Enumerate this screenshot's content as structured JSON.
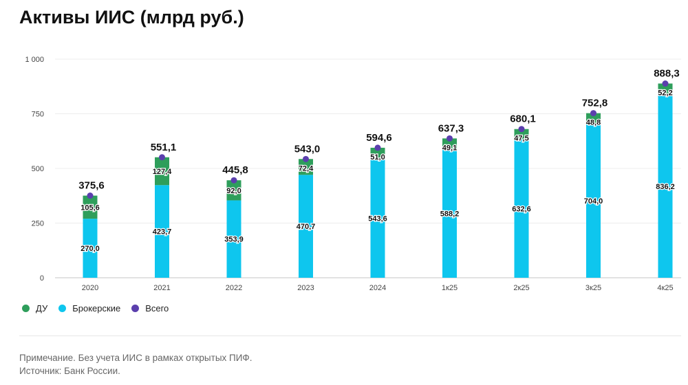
{
  "chart_data": {
    "type": "bar",
    "stacked": true,
    "title": "Активы ИИС (млрд руб.)",
    "categories": [
      "2020",
      "2021",
      "2022",
      "2023",
      "2024",
      "1к25",
      "2к25",
      "3к25",
      "4к25"
    ],
    "series": [
      {
        "name": "Брокерские",
        "color": "#0ec6ee",
        "values": [
          270.0,
          423.7,
          353.9,
          470.7,
          543.6,
          588.2,
          632.6,
          704.0,
          836.2
        ],
        "labels": [
          "270,0",
          "423,7",
          "353,9",
          "470,7",
          "543,6",
          "588,2",
          "632,6",
          "704,0",
          "836,2"
        ]
      },
      {
        "name": "ДУ",
        "color": "#2e9e5b",
        "values": [
          105.6,
          127.4,
          92.0,
          72.4,
          51.0,
          49.1,
          47.5,
          48.8,
          52.2
        ],
        "labels": [
          "105,6",
          "127,4",
          "92,0",
          "72,4",
          "51,0",
          "49,1",
          "47,5",
          "48,8",
          "52,2"
        ]
      },
      {
        "name": "Всего",
        "color": "#5b3fad",
        "type": "scatter",
        "values": [
          375.6,
          551.1,
          445.8,
          543.0,
          594.6,
          637.3,
          680.1,
          752.8,
          888.3
        ],
        "labels": [
          "375,6",
          "551,1",
          "445,8",
          "543,0",
          "594,6",
          "637,3",
          "680,1",
          "752,8",
          "888,3"
        ]
      }
    ],
    "ylim": [
      0,
      1000
    ],
    "yticks": [
      0,
      250,
      500,
      750,
      1000
    ],
    "ytick_labels": [
      "0",
      "250",
      "500",
      "750",
      "1 000"
    ],
    "grid": true,
    "legend_position": "bottom-left",
    "legend": [
      {
        "label": "ДУ",
        "color": "#2e9e5b"
      },
      {
        "label": "Брокерские",
        "color": "#0ec6ee"
      },
      {
        "label": "Всего",
        "color": "#5b3fad"
      }
    ]
  },
  "notes": {
    "note": "Примечание. Без учета ИИС в рамках открытых ПИФ.",
    "source": "Источник: Банк России."
  }
}
